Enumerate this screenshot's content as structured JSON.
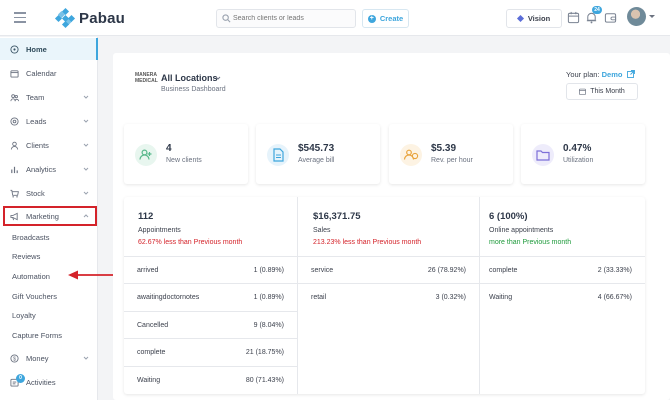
{
  "brand": {
    "name": "Pabau",
    "color": "#3ea6dd"
  },
  "search": {
    "placeholder": "Search clients or leads"
  },
  "header": {
    "create_label": "Create",
    "vision_label": "Vision",
    "notification_count": "24"
  },
  "sidebar": {
    "items": [
      {
        "label": "Home",
        "icon": "home-icon"
      },
      {
        "label": "Calendar",
        "icon": "calendar-icon"
      },
      {
        "label": "Team",
        "icon": "team-icon"
      },
      {
        "label": "Leads",
        "icon": "leads-icon"
      },
      {
        "label": "Clients",
        "icon": "clients-icon"
      },
      {
        "label": "Analytics",
        "icon": "analytics-icon"
      },
      {
        "label": "Stock",
        "icon": "cart-icon"
      },
      {
        "label": "Marketing",
        "icon": "megaphone-icon"
      }
    ],
    "marketing_sub": [
      "Broadcasts",
      "Reviews",
      "Automation",
      "Gift Vouchers",
      "Loyalty",
      "Capture Forms"
    ],
    "money_label": "Money",
    "activities_label": "Activities",
    "activities_badge": "0"
  },
  "dashboard": {
    "location_logo": "MANERA MEDICAL",
    "location_title": "All Locations",
    "location_subtitle": "Business Dashboard",
    "plan_prefix": "Your plan:",
    "plan_name": "Demo",
    "period_label": "This Month",
    "stats": [
      {
        "value": "4",
        "label": "New clients",
        "icon": "new-clients-icon",
        "color": "#56b88a"
      },
      {
        "value": "$545.73",
        "label": "Average bill",
        "icon": "bill-icon",
        "color": "#3ea6dd"
      },
      {
        "value": "$5.39",
        "label": "Rev. per hour",
        "icon": "rev-hour-icon",
        "color": "#e8a33c"
      },
      {
        "value": "0.47%",
        "label": "Utilization",
        "icon": "folder-icon",
        "color": "#7c6fd8"
      }
    ],
    "appointments": {
      "value": "112",
      "label": "Appointments",
      "trend": "62.67% less than Previous month",
      "rows": [
        {
          "name": "arrived",
          "value": "1 (0.89%)"
        },
        {
          "name": "awaitingdoctornotes",
          "value": "1 (0.89%)"
        },
        {
          "name": "Cancelled",
          "value": "9 (8.04%)"
        },
        {
          "name": "complete",
          "value": "21 (18.75%)"
        },
        {
          "name": "Waiting",
          "value": "80 (71.43%)"
        }
      ]
    },
    "sales": {
      "value": "$16,371.75",
      "label": "Sales",
      "trend": "213.23% less than Previous month",
      "rows": [
        {
          "name": "service",
          "value": "26 (78.92%)"
        },
        {
          "name": "retail",
          "value": "3 (0.32%)"
        }
      ]
    },
    "online": {
      "value": "6 (100%)",
      "label": "Online appointments",
      "trend": "more than Previous month",
      "rows": [
        {
          "name": "complete",
          "value": "2 (33.33%)"
        },
        {
          "name": "Waiting",
          "value": "4 (66.67%)"
        }
      ]
    }
  }
}
